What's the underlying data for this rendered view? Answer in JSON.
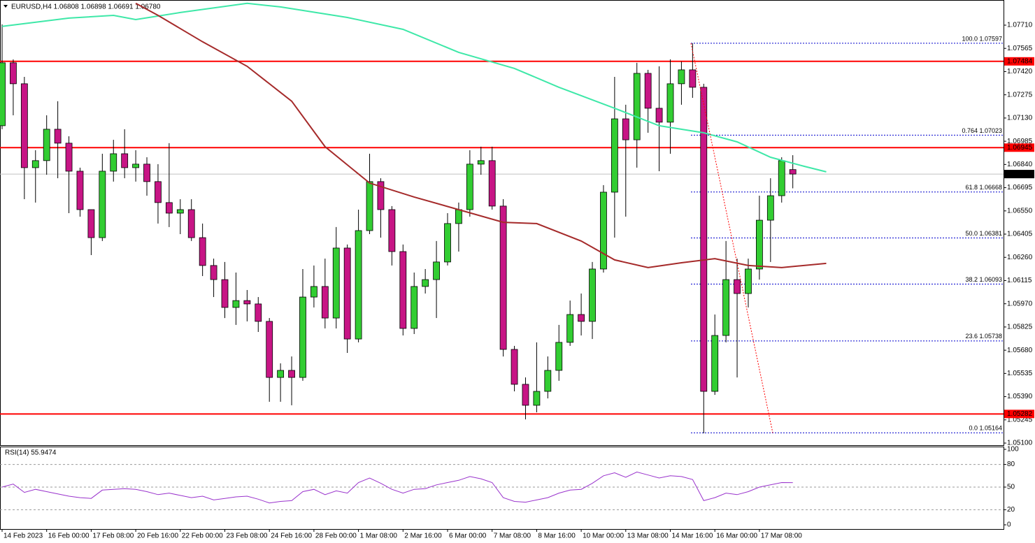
{
  "chart_data": {
    "type": "candlestick",
    "title": "EURUSD,H4 1.06808 1.06898 1.06691 1.06780",
    "categories": [
      "14 Feb 2023",
      null,
      null,
      null,
      "16 Feb 00:00",
      null,
      null,
      null,
      "17 Feb 08:00",
      null,
      null,
      null,
      "20 Feb 16:00",
      null,
      null,
      null,
      "22 Feb 00:00",
      null,
      null,
      null,
      "23 Feb 08:00",
      null,
      null,
      null,
      "24 Feb 16:00",
      null,
      null,
      null,
      "28 Feb 00:00",
      null,
      null,
      null,
      "1 Mar 08:00",
      null,
      null,
      null,
      "2 Mar 16:00",
      null,
      null,
      null,
      "6 Mar 00:00",
      null,
      null,
      null,
      "7 Mar 08:00",
      null,
      null,
      null,
      "8 Mar 16:00",
      null,
      null,
      null,
      "10 Mar 00:00",
      null,
      null,
      null,
      "13 Mar 08:00",
      null,
      null,
      null,
      "14 Mar 16:00",
      null,
      null,
      null,
      "16 Mar 00:00",
      null,
      null,
      null,
      "17 Mar 08:00",
      null,
      null,
      null
    ],
    "candles": [
      [
        1.07082,
        1.07715,
        1.0706,
        1.07475
      ],
      [
        1.07475,
        1.07496,
        1.07147,
        1.07344
      ],
      [
        1.07344,
        1.07387,
        1.06623,
        1.0682
      ],
      [
        1.0682,
        1.06929,
        1.06602,
        1.06864
      ],
      [
        1.06864,
        1.07147,
        1.06776,
        1.0706
      ],
      [
        1.0706,
        1.07235,
        1.06754,
        1.06973
      ],
      [
        1.06973,
        1.07016,
        1.06536,
        1.06798
      ],
      [
        1.06798,
        1.0682,
        1.06514,
        1.06558
      ],
      [
        1.06558,
        1.06558,
        1.06274,
        1.06383
      ],
      [
        1.06383,
        1.06907,
        1.06362,
        1.06798
      ],
      [
        1.06798,
        1.06994,
        1.06733,
        1.06907
      ],
      [
        1.06907,
        1.0706,
        1.06754,
        1.0682
      ],
      [
        1.0682,
        1.06929,
        1.06733,
        1.06842
      ],
      [
        1.06842,
        1.06885,
        1.06645,
        1.06733
      ],
      [
        1.06733,
        1.06842,
        1.06471,
        1.06602
      ],
      [
        1.06602,
        1.06973,
        1.06449,
        1.06536
      ],
      [
        1.06536,
        1.06623,
        1.06405,
        1.06558
      ],
      [
        1.06558,
        1.06623,
        1.06362,
        1.06383
      ],
      [
        1.06383,
        1.06471,
        1.06143,
        1.06209
      ],
      [
        1.06209,
        1.06252,
        1.06012,
        1.06121
      ],
      [
        1.06121,
        1.06231,
        1.05881,
        1.05947
      ],
      [
        1.05947,
        1.06165,
        1.05838,
        1.0599
      ],
      [
        1.0599,
        1.06056,
        1.0586,
        1.05969
      ],
      [
        1.05969,
        1.06012,
        1.05794,
        1.0586
      ],
      [
        1.0586,
        1.05881,
        1.05358,
        1.0551
      ],
      [
        1.0551,
        1.05598,
        1.05358,
        1.05554
      ],
      [
        1.05554,
        1.05641,
        1.05336,
        1.0551
      ],
      [
        1.0551,
        1.06187,
        1.05489,
        1.06012
      ],
      [
        1.06012,
        1.06209,
        1.05947,
        1.06078
      ],
      [
        1.06078,
        1.06252,
        1.05816,
        1.05881
      ],
      [
        1.05881,
        1.06449,
        1.05816,
        1.06318
      ],
      [
        1.06318,
        1.0634,
        1.05663,
        1.0575
      ],
      [
        1.0575,
        1.06558,
        1.05729,
        1.06427
      ],
      [
        1.06427,
        1.06907,
        1.06405,
        1.06733
      ],
      [
        1.06733,
        1.06754,
        1.06383,
        1.06558
      ],
      [
        1.06558,
        1.0658,
        1.06209,
        1.06296
      ],
      [
        1.06296,
        1.0634,
        1.05772,
        1.05816
      ],
      [
        1.05816,
        1.06165,
        1.05781,
        1.06078
      ],
      [
        1.06078,
        1.06187,
        1.06034,
        1.06121
      ],
      [
        1.06121,
        1.06362,
        1.05881,
        1.06231
      ],
      [
        1.06231,
        1.06536,
        1.06209,
        1.06471
      ],
      [
        1.06471,
        1.06602,
        1.06296,
        1.06558
      ],
      [
        1.06558,
        1.06929,
        1.06514,
        1.06842
      ],
      [
        1.06842,
        1.06951,
        1.06776,
        1.06864
      ],
      [
        1.06864,
        1.06951,
        1.06558,
        1.0658
      ],
      [
        1.0658,
        1.06623,
        1.05641,
        1.05685
      ],
      [
        1.05685,
        1.05707,
        1.05423,
        1.05467
      ],
      [
        1.05467,
        1.0551,
        1.05248,
        1.05336
      ],
      [
        1.05336,
        1.05729,
        1.05292,
        1.05423
      ],
      [
        1.05423,
        1.05641,
        1.05379,
        1.05554
      ],
      [
        1.05554,
        1.05838,
        1.05489,
        1.05729
      ],
      [
        1.05729,
        1.0599,
        1.05707,
        1.05903
      ],
      [
        1.05903,
        1.06034,
        1.05772,
        1.0586
      ],
      [
        1.0586,
        1.06231,
        1.0575,
        1.06187
      ],
      [
        1.06187,
        1.06711,
        1.06165,
        1.06667
      ],
      [
        1.06667,
        1.07387,
        1.06383,
        1.07125
      ],
      [
        1.07125,
        1.07213,
        1.06514,
        1.06994
      ],
      [
        1.06994,
        1.07475,
        1.0682,
        1.07409
      ],
      [
        1.07409,
        1.07431,
        1.07038,
        1.07191
      ],
      [
        1.07191,
        1.07453,
        1.06798,
        1.07104
      ],
      [
        1.07104,
        1.07496,
        1.06907,
        1.07344
      ],
      [
        1.07344,
        1.07483,
        1.07213,
        1.07431
      ],
      [
        1.07431,
        1.07597,
        1.07256,
        1.07322
      ],
      [
        1.07322,
        1.07344,
        1.05161,
        1.05423
      ],
      [
        1.05423,
        1.05903,
        1.05401,
        1.05772
      ],
      [
        1.05772,
        1.06362,
        1.05729,
        1.06121
      ],
      [
        1.06121,
        1.06252,
        1.0551,
        1.06034
      ],
      [
        1.06034,
        1.06252,
        1.05947,
        1.06187
      ],
      [
        1.06187,
        1.06645,
        1.06121,
        1.06492
      ],
      [
        1.06492,
        1.06754,
        1.06231,
        1.06645
      ],
      [
        1.06645,
        1.06885,
        1.06602,
        1.06864
      ],
      [
        1.06808,
        1.06898,
        1.06691,
        1.0678
      ]
    ],
    "colors": {
      "up": "#32cd32",
      "down": "#c71585"
    },
    "ylim": [
      1.05087,
      1.07854
    ],
    "yticks": [
      {
        "value": 1.0771,
        "label": "1.07710"
      },
      1.07565,
      {
        "value": 1.0742,
        "label": "1.07420"
      },
      1.07275,
      {
        "value": 1.0713,
        "label": "1.07130"
      },
      1.06985,
      {
        "value": 1.0684,
        "label": "1.06840"
      },
      1.06695,
      {
        "value": 1.0655,
        "label": "1.06550"
      },
      1.06405,
      {
        "value": 1.0626,
        "label": "1.06260"
      },
      1.06115,
      {
        "value": 1.0597,
        "label": "1.05970"
      },
      1.05825,
      {
        "value": 1.0568,
        "label": "1.05680"
      },
      1.05535,
      {
        "value": 1.0539,
        "label": "1.05390"
      },
      1.05245,
      {
        "value": 1.051,
        "label": "1.05100"
      }
    ],
    "moving_averages": [
      {
        "color": "#3ee8a8",
        "x": [
          0,
          6,
          10,
          12,
          16,
          22,
          25,
          31,
          36,
          41,
          46,
          50,
          55,
          59,
          63,
          66,
          69,
          72,
          74
        ],
        "values": [
          1.07702,
          1.07754,
          1.07771,
          1.07745,
          1.07789,
          1.07846,
          1.07824,
          1.07758,
          1.07684,
          1.0754,
          1.0744,
          1.07322,
          1.07191,
          1.07082,
          1.07038,
          1.06981,
          1.06885,
          1.06829,
          1.06794
        ]
      },
      {
        "color": "#a52a2a",
        "x": [
          12,
          14,
          18,
          22,
          26,
          29,
          33,
          37,
          41,
          45,
          48,
          52,
          55,
          58,
          61,
          64,
          67,
          70,
          74
        ],
        "values": [
          1.07846,
          1.07771,
          1.07606,
          1.07453,
          1.07235,
          1.06951,
          1.06724,
          1.06637,
          1.06558,
          1.06479,
          1.06471,
          1.06362,
          1.06244,
          1.06196,
          1.06226,
          1.06252,
          1.06209,
          1.06196,
          1.06222
        ]
      }
    ],
    "levels": {
      "color": "#ff0000",
      "values": [
        1.07484,
        1.06945,
        1.05282
      ]
    },
    "price_line": {
      "value": 1.0678,
      "label": "1.06780",
      "color": "#c0c0c0"
    },
    "fibonacci": {
      "color": "#0000cd",
      "trend_color": "#ff0000",
      "levels": [
        {
          "value": 1.07597,
          "label": "100.0 1.07597"
        },
        {
          "value": 1.07023,
          "label": "0.764 1.07023"
        },
        {
          "value": 1.06668,
          "label": "61.8 1.06668"
        },
        {
          "value": 1.06381,
          "label": "50.0 1.06381"
        },
        {
          "value": 1.06093,
          "label": "38.2 1.06093"
        },
        {
          "value": 1.05738,
          "label": "23.6 1.05738"
        },
        {
          "value": 1.05164,
          "label": "0.0 1.05164"
        }
      ]
    },
    "rsi": {
      "title": "RSI(14) 55.9474",
      "color": "#9932cc",
      "ylim": [
        0,
        100
      ],
      "yticks": [
        0,
        20,
        50,
        80,
        100
      ],
      "levels": [
        20,
        50,
        80
      ],
      "values": [
        50,
        54,
        43,
        47,
        44,
        41,
        38,
        36,
        35,
        46,
        47,
        48,
        47,
        44,
        40,
        42,
        39,
        36,
        38,
        33,
        35,
        37,
        38,
        34,
        29,
        31,
        32,
        44,
        47,
        40,
        45,
        42,
        56,
        62,
        55,
        47,
        42,
        47,
        48,
        53,
        56,
        59,
        64,
        61,
        56,
        36,
        31,
        30,
        33,
        36,
        42,
        46,
        47,
        55,
        65,
        69,
        63,
        70,
        66,
        62,
        65,
        64,
        60,
        32,
        36,
        42,
        40,
        44,
        50,
        53,
        56,
        55.9474
      ]
    }
  }
}
